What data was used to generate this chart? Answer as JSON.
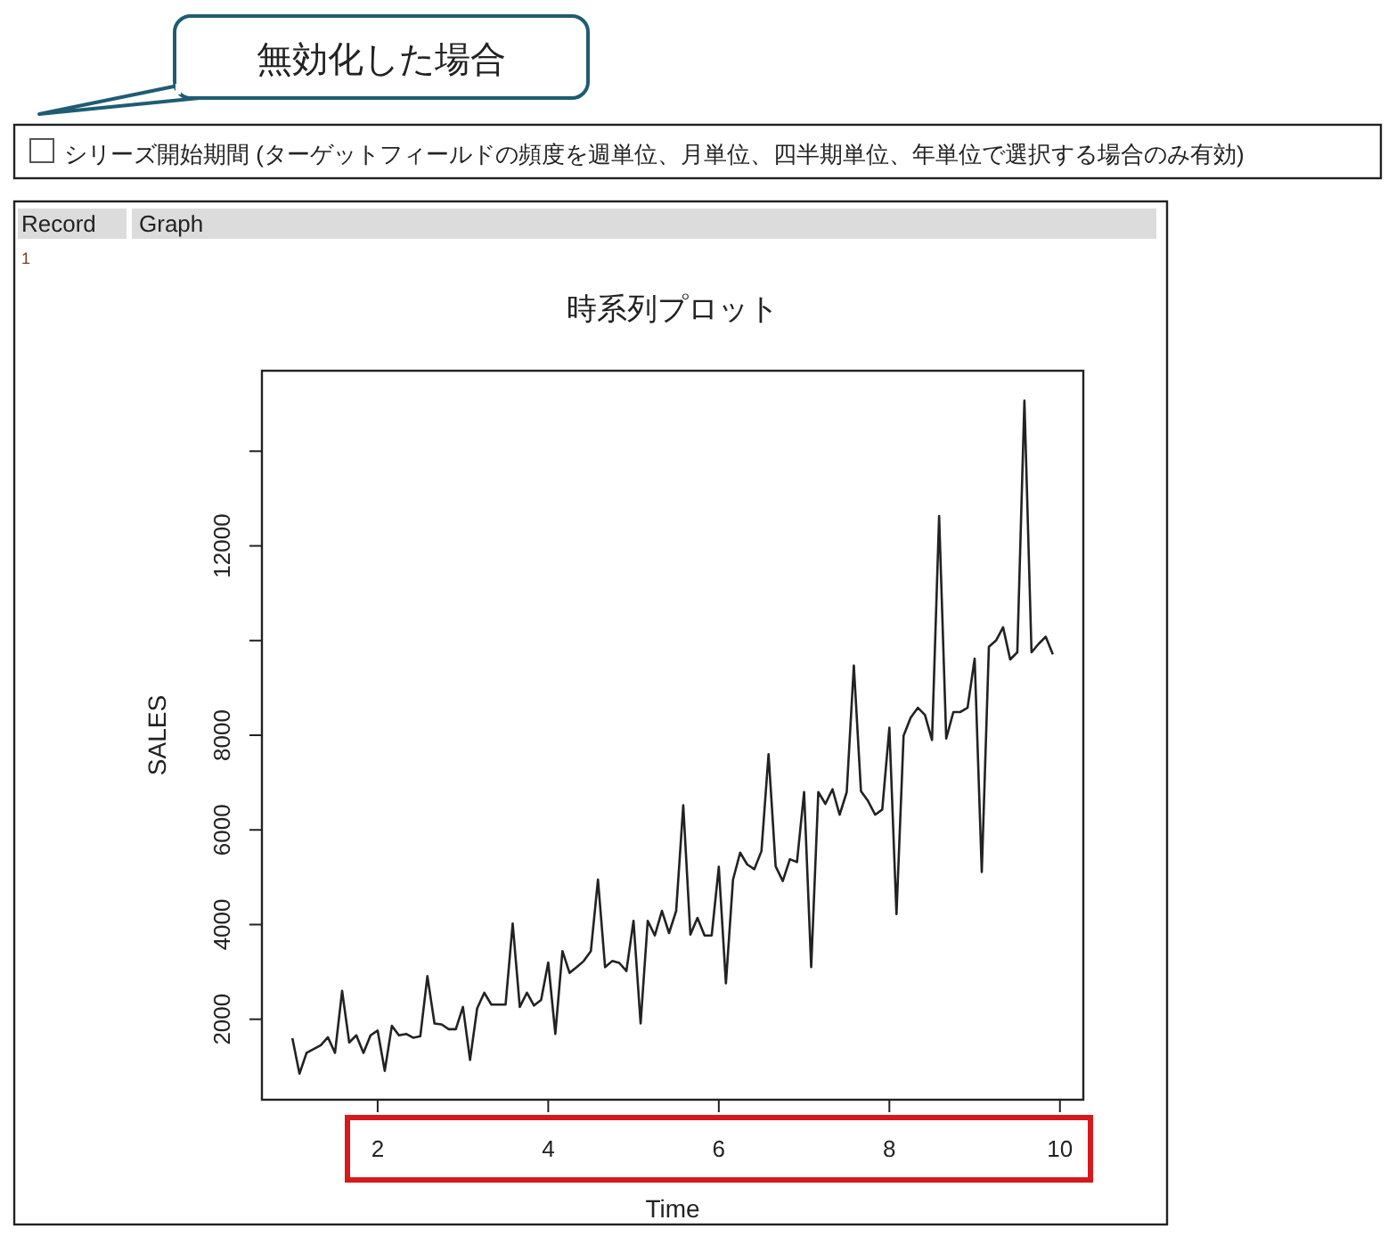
{
  "chart_data": {
    "type": "line",
    "title": "時系列プロット",
    "xlabel": "Time",
    "ylabel": "SALES",
    "color": "#222222",
    "xlim": [
      0.643,
      10.274
    ],
    "ylim": [
      300,
      15700
    ],
    "xticks": [
      2,
      4,
      6,
      8,
      10
    ],
    "yticks": [
      2000,
      4000,
      6000,
      8000,
      {
        "value": 10000,
        "label": null
      },
      12000,
      {
        "value": 14000,
        "label": null
      }
    ],
    "annotations": [
      "無効化した場合",
      "シリーズ開始期間 (ターゲットフィールドの頻度を週単位、月単位、四半期単位、年単位で選択する場合のみ有効)",
      "Record",
      "Graph",
      "1"
    ],
    "x": [
      1,
      1.0833,
      1.1667,
      1.25,
      1.3333,
      1.4167,
      1.5,
      1.5833,
      1.6667,
      1.75,
      1.8333,
      1.9167,
      2,
      2.0833,
      2.1667,
      2.25,
      2.3333,
      2.4167,
      2.5,
      2.5833,
      2.6667,
      2.75,
      2.8333,
      2.9167,
      3,
      3.0833,
      3.1667,
      3.25,
      3.3333,
      3.4167,
      3.5,
      3.5833,
      3.6667,
      3.75,
      3.8333,
      3.9167,
      4,
      4.0833,
      4.1667,
      4.25,
      4.3333,
      4.4167,
      4.5,
      4.5833,
      4.6667,
      4.75,
      4.8333,
      4.9167,
      5,
      5.0833,
      5.1667,
      5.25,
      5.3333,
      5.4167,
      5.5,
      5.5833,
      5.6667,
      5.75,
      5.8333,
      5.9167,
      6,
      6.0833,
      6.1667,
      6.25,
      6.3333,
      6.4167,
      6.5,
      6.5833,
      6.6667,
      6.75,
      6.8333,
      6.9167,
      7,
      7.0833,
      7.1667,
      7.25,
      7.3333,
      7.4167,
      7.5,
      7.5833,
      7.6667,
      7.75,
      7.8333,
      7.9167,
      8,
      8.0833,
      8.1667,
      8.25,
      8.3333,
      8.4167,
      8.5,
      8.5833,
      8.6667,
      8.75,
      8.8333,
      8.9167,
      9,
      9.0833,
      9.1667,
      9.25,
      9.3333,
      9.4167,
      9.5,
      9.5833,
      9.6667,
      9.75,
      9.8333,
      9.9167
    ],
    "values": [
      1600,
      850,
      1290,
      1370,
      1450,
      1620,
      1290,
      2600,
      1510,
      1660,
      1290,
      1660,
      1760,
      910,
      1860,
      1660,
      1690,
      1610,
      1640,
      2910,
      1910,
      1890,
      1790,
      1790,
      2260,
      1140,
      2230,
      2560,
      2310,
      2310,
      2310,
      4020,
      2260,
      2560,
      2290,
      2410,
      3200,
      1690,
      3440,
      2980,
      3100,
      3230,
      3440,
      4950,
      3100,
      3230,
      3190,
      3020,
      4080,
      1910,
      4080,
      3770,
      4290,
      3820,
      4290,
      6520,
      3790,
      4140,
      3770,
      3770,
      5220,
      2760,
      4950,
      5520,
      5270,
      5170,
      5550,
      7600,
      5230,
      4920,
      5380,
      5320,
      6800,
      3100,
      6800,
      6550,
      6860,
      6320,
      6800,
      9470,
      6820,
      6610,
      6320,
      6430,
      8160,
      4220,
      7990,
      8370,
      8580,
      8430,
      7900,
      12630,
      7930,
      8490,
      8490,
      8580,
      9620,
      5110,
      9870,
      10000,
      10280,
      9600,
      9750,
      15070,
      9750,
      9930,
      10080,
      9710
    ]
  }
}
